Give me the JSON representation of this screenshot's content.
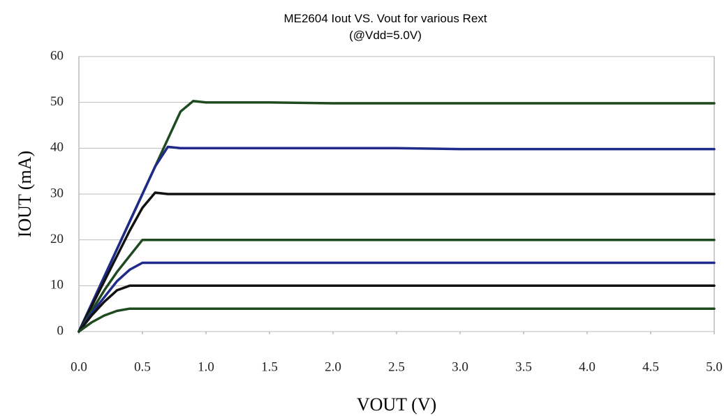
{
  "chart_data": {
    "type": "line",
    "title": "ME2604 Iout VS. Vout for various Rext",
    "subtitle": "(@Vdd=5.0V)",
    "x_label": "VOUT (V)",
    "y_label": "IOUT (mA)",
    "x": [
      0,
      0.1,
      0.2,
      0.3,
      0.4,
      0.5,
      0.6,
      0.7,
      0.8,
      0.9,
      1.0,
      1.5,
      2.0,
      2.5,
      3.0,
      3.5,
      4.0,
      4.5,
      5.0
    ],
    "series": [
      {
        "color": "#1f4a1f",
        "values": [
          0,
          6,
          12,
          18,
          24,
          30,
          36,
          42,
          48,
          50.3,
          50,
          50,
          49.8,
          49.8,
          49.8,
          49.8,
          49.8,
          49.8,
          49.8
        ]
      },
      {
        "color": "#1f2a8a",
        "values": [
          0,
          6,
          12,
          18,
          24,
          30,
          36,
          40.3,
          40,
          40,
          40,
          40,
          40,
          40,
          39.8,
          39.8,
          39.8,
          39.8,
          39.8
        ]
      },
      {
        "color": "#111111",
        "values": [
          0,
          5.5,
          11,
          16.5,
          22,
          27,
          30.3,
          30,
          30,
          30,
          30,
          30,
          30,
          30,
          30,
          30,
          30,
          30,
          30
        ]
      },
      {
        "color": "#1f4a1f",
        "values": [
          0,
          4.5,
          9,
          13,
          16.5,
          20,
          20,
          20,
          20,
          20,
          20,
          20,
          20,
          20,
          20,
          20,
          20,
          20,
          20
        ]
      },
      {
        "color": "#1f2a8a",
        "values": [
          0,
          4,
          7.5,
          11,
          13.5,
          15,
          15,
          15,
          15,
          15,
          15,
          15,
          15,
          15,
          15,
          15,
          15,
          15,
          15
        ]
      },
      {
        "color": "#111111",
        "values": [
          0,
          3.5,
          6.5,
          9,
          10,
          10,
          10,
          10,
          10,
          10,
          10,
          10,
          10,
          10,
          10,
          10,
          10,
          10,
          10
        ]
      },
      {
        "color": "#1f4a1f",
        "values": [
          0,
          2,
          3.5,
          4.5,
          5,
          5,
          5,
          5,
          5,
          5,
          5,
          5,
          5,
          5,
          5,
          5,
          5,
          5,
          5
        ]
      }
    ],
    "xlim": [
      0,
      5
    ],
    "xticks": [
      {
        "value": 0,
        "label": "0.0"
      },
      {
        "value": 0.5,
        "label": "0.5"
      },
      {
        "value": 1,
        "label": "1.0"
      },
      {
        "value": 1.5,
        "label": "1.5"
      },
      {
        "value": 2,
        "label": "2.0"
      },
      {
        "value": 2.5,
        "label": "2.5"
      },
      {
        "value": 3,
        "label": "3.0"
      },
      {
        "value": 3.5,
        "label": "3.5"
      },
      {
        "value": 4,
        "label": "4.0"
      },
      {
        "value": 4.5,
        "label": "4.5"
      },
      {
        "value": 5,
        "label": "5.0"
      }
    ],
    "ylim": [
      0,
      60
    ],
    "yticks": [
      0,
      10,
      20,
      30,
      40,
      50,
      60
    ],
    "grid": true
  }
}
